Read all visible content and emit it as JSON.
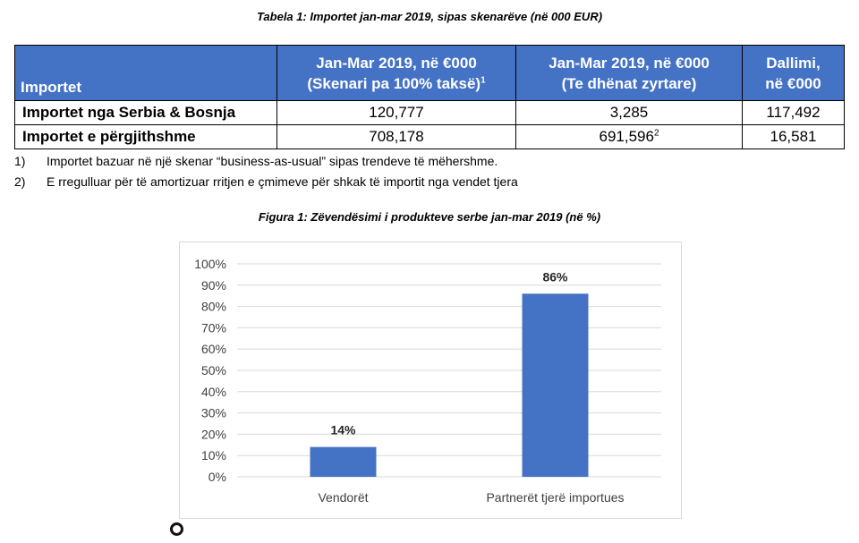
{
  "table_caption": "Tabela 1: Importet jan-mar 2019, sipas skenarëve (në 000 EUR)",
  "table": {
    "headers": {
      "col1": "Importet",
      "col2_line1": "Jan-Mar 2019, në €000",
      "col2_line2": "(Skenari pa 100% taksë)",
      "col2_sup": "1",
      "col3_line1": "Jan-Mar 2019, në €000",
      "col3_line2": "(Te dhënat zyrtare)",
      "col4_line1": "Dallimi,",
      "col4_line2": "në €000"
    },
    "rows": [
      {
        "label": "Importet nga Serbia & Bosnja",
        "scenario": "120,777",
        "official": "3,285",
        "official_sup": "",
        "difference": "117,492"
      },
      {
        "label": "Importet e përgjithshme",
        "scenario": "708,178",
        "official": "691,596",
        "official_sup": "2",
        "difference": "16,581"
      }
    ]
  },
  "notes": [
    {
      "num": "1)",
      "text": "Importet bazuar në një skenar “business-as-usual” sipas trendeve të mëhershme."
    },
    {
      "num": "2)",
      "text": "E rregulluar për të amortizuar rritjen e çmimeve për shkak të importit nga vendet tjera"
    }
  ],
  "figure_caption": "Figura 1: Zëvendësimi i produkteve serbe jan-mar 2019 (në %)",
  "chart_data": {
    "type": "bar",
    "categories": [
      "Vendorët",
      "Partnerët tjerë importues"
    ],
    "values": [
      14,
      86
    ],
    "value_labels": [
      "14%",
      "86%"
    ],
    "title": "",
    "xlabel": "",
    "ylabel": "",
    "ylim": [
      0,
      100
    ],
    "yticks": [
      0,
      10,
      20,
      30,
      40,
      50,
      60,
      70,
      80,
      90,
      100
    ],
    "ytick_labels": [
      "0%",
      "10%",
      "20%",
      "30%",
      "40%",
      "50%",
      "60%",
      "70%",
      "80%",
      "90%",
      "100%"
    ],
    "grid": true,
    "bar_color": "#4472c4",
    "grid_color": "#d9d9d9"
  }
}
